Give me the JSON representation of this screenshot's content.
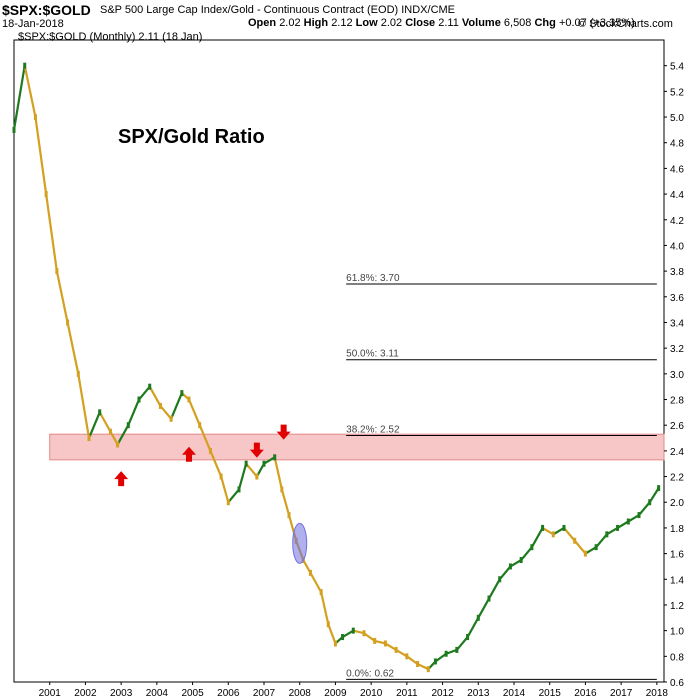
{
  "header": {
    "symbol": "$SPX:$GOLD",
    "description": "S&P 500 Large Cap Index/Gold - Continuous Contract (EOD) INDX/CME",
    "date": "18-Jan-2018",
    "open_label": "Open",
    "open": "2.02",
    "high_label": "High",
    "high": "2.12",
    "low_label": "Low",
    "low": "2.02",
    "close_label": "Close",
    "close": "2.11",
    "volume_label": "Volume",
    "volume": "6,508",
    "chg_label": "Chg",
    "chg": "+0.07 (+3.35%)",
    "copyright": "© StockCharts.com",
    "legend": "$SPX:$GOLD (Monthly) 2.11 (18 Jan)"
  },
  "colors": {
    "up": "#1e7a1e",
    "down": "#d4a020",
    "fib": "#000000",
    "band_fill": "#f7c6c6",
    "band_edge": "#e48a8a",
    "arrow": "#e00000",
    "ellipse": "#7070e0",
    "grid": "#cccccc",
    "axis": "#000000"
  },
  "chart_data": {
    "type": "line",
    "title": "SPX/Gold Ratio",
    "xlabel": "",
    "ylabel": "",
    "ylim": [
      0.6,
      5.6
    ],
    "xlim": [
      2000.0,
      2018.2
    ],
    "yscale": "linear",
    "grid": false,
    "y_ticks": [
      5.4,
      5.2,
      5.0,
      4.8,
      4.6,
      4.4,
      4.2,
      4.0,
      3.8,
      3.6,
      3.4,
      3.2,
      3.0,
      2.8,
      2.6,
      2.4,
      2.2,
      2.0,
      1.8,
      1.6,
      1.4,
      1.2,
      1.0,
      0.8,
      0.6
    ],
    "x_ticks": [
      "2001",
      "2002",
      "2003",
      "2004",
      "2005",
      "2006",
      "2007",
      "2008",
      "2009",
      "2010",
      "2011",
      "2012",
      "2013",
      "2014",
      "2015",
      "2016",
      "2017",
      "2018"
    ],
    "series": [
      {
        "x": [
          2000.0,
          2000.3,
          2000.6,
          2000.9,
          2001.2,
          2001.5,
          2001.8,
          2002.1,
          2002.4,
          2002.7,
          2002.9,
          2003.2,
          2003.5,
          2003.8,
          2004.1,
          2004.4,
          2004.7,
          2004.9,
          2005.2,
          2005.5,
          2005.8,
          2006.0,
          2006.3,
          2006.5,
          2006.8,
          2007.0,
          2007.3,
          2007.5,
          2007.7,
          2007.9,
          2008.1,
          2008.3,
          2008.6,
          2008.8,
          2009.0,
          2009.2,
          2009.5,
          2009.8,
          2010.1,
          2010.4,
          2010.7,
          2011.0,
          2011.3,
          2011.6,
          2011.8,
          2012.1,
          2012.4,
          2012.7,
          2013.0,
          2013.3,
          2013.6,
          2013.9,
          2014.2,
          2014.5,
          2014.8,
          2015.1,
          2015.4,
          2015.7,
          2016.0,
          2016.3,
          2016.6,
          2016.9,
          2017.2,
          2017.5,
          2017.8,
          2018.05
        ],
        "values": [
          4.9,
          5.4,
          5.0,
          4.4,
          3.8,
          3.4,
          3.0,
          2.5,
          2.7,
          2.55,
          2.45,
          2.6,
          2.8,
          2.9,
          2.75,
          2.65,
          2.85,
          2.8,
          2.6,
          2.4,
          2.2,
          2.0,
          2.1,
          2.3,
          2.2,
          2.3,
          2.35,
          2.1,
          1.9,
          1.7,
          1.55,
          1.45,
          1.3,
          1.05,
          0.9,
          0.95,
          1.0,
          0.98,
          0.92,
          0.9,
          0.85,
          0.8,
          0.74,
          0.7,
          0.76,
          0.82,
          0.85,
          0.95,
          1.1,
          1.25,
          1.4,
          1.5,
          1.55,
          1.65,
          1.8,
          1.75,
          1.8,
          1.7,
          1.6,
          1.65,
          1.75,
          1.8,
          1.85,
          1.9,
          2.0,
          2.11
        ]
      }
    ],
    "fib_levels": [
      {
        "label": "61.8%: 3.70",
        "value": 3.7
      },
      {
        "label": "50.0%: 3.11",
        "value": 3.11
      },
      {
        "label": "38.2%: 2.52",
        "value": 2.52
      },
      {
        "label": "0.0%: 0.62",
        "value": 0.62
      }
    ],
    "fib_x_start": 2009.3,
    "resistance_band": [
      2.33,
      2.53
    ],
    "arrows": [
      {
        "x": 2003.0,
        "y": 2.18,
        "dir": "up"
      },
      {
        "x": 2004.9,
        "y": 2.37,
        "dir": "up"
      },
      {
        "x": 2006.8,
        "y": 2.41,
        "dir": "down"
      },
      {
        "x": 2007.55,
        "y": 2.55,
        "dir": "down"
      }
    ],
    "highlight": {
      "x": 2008.0,
      "y": 1.68
    }
  }
}
